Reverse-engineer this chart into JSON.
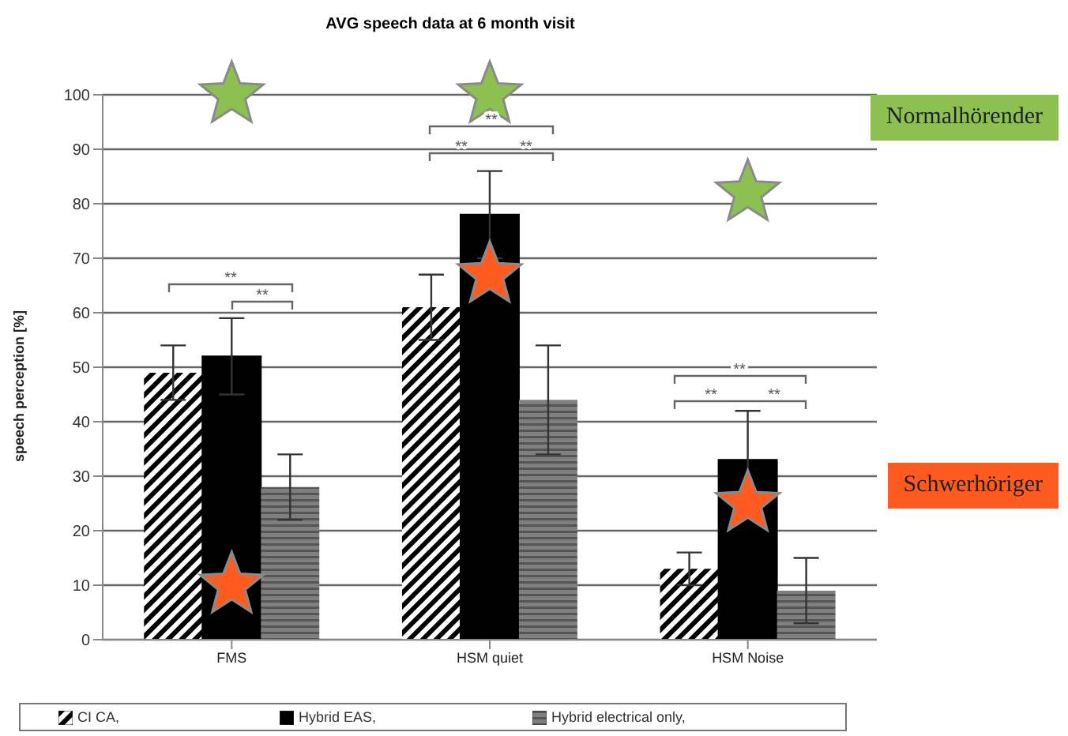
{
  "chart_data": {
    "type": "bar",
    "title": "AVG speech data at 6 month visit",
    "ylabel": "speech perception [%]",
    "categories": [
      "FMS",
      "HSM quiet",
      "HSM Noise"
    ],
    "series": [
      {
        "name": "CI CA,",
        "color": "#000000",
        "values": [
          49,
          61,
          13
        ],
        "errors": [
          5,
          6,
          3
        ]
      },
      {
        "name": "Hybrid EAS,",
        "color": "#000000",
        "values": [
          52,
          78,
          33
        ],
        "errors": [
          7,
          8,
          9
        ]
      },
      {
        "name": "Hybrid electrical only,",
        "color": "#7f7f7f",
        "values": [
          28,
          44,
          9
        ],
        "errors": [
          6,
          10,
          6
        ]
      },
      {
        "name": "Normalhörender",
        "type": "scatter",
        "marker": "star",
        "color": "#8cc152",
        "x": [
          "FMS",
          "HSM quiet",
          "HSM Noise"
        ],
        "values": [
          100,
          100,
          82
        ]
      },
      {
        "name": "Schwerhöriger",
        "type": "scatter",
        "marker": "star",
        "color": "#ff5a1f",
        "x": [
          "FMS",
          "HSM quiet",
          "HSM Noise"
        ],
        "values": [
          10,
          67,
          25
        ]
      }
    ],
    "annotations": [
      "**",
      "**",
      "**",
      "**",
      "**",
      "**",
      "**",
      "**"
    ],
    "ylim": [
      0,
      100
    ],
    "yticks": [
      0,
      10,
      20,
      30,
      40,
      50,
      60,
      70,
      80,
      90,
      100
    ],
    "grid": "y",
    "legend": "bottom"
  }
}
